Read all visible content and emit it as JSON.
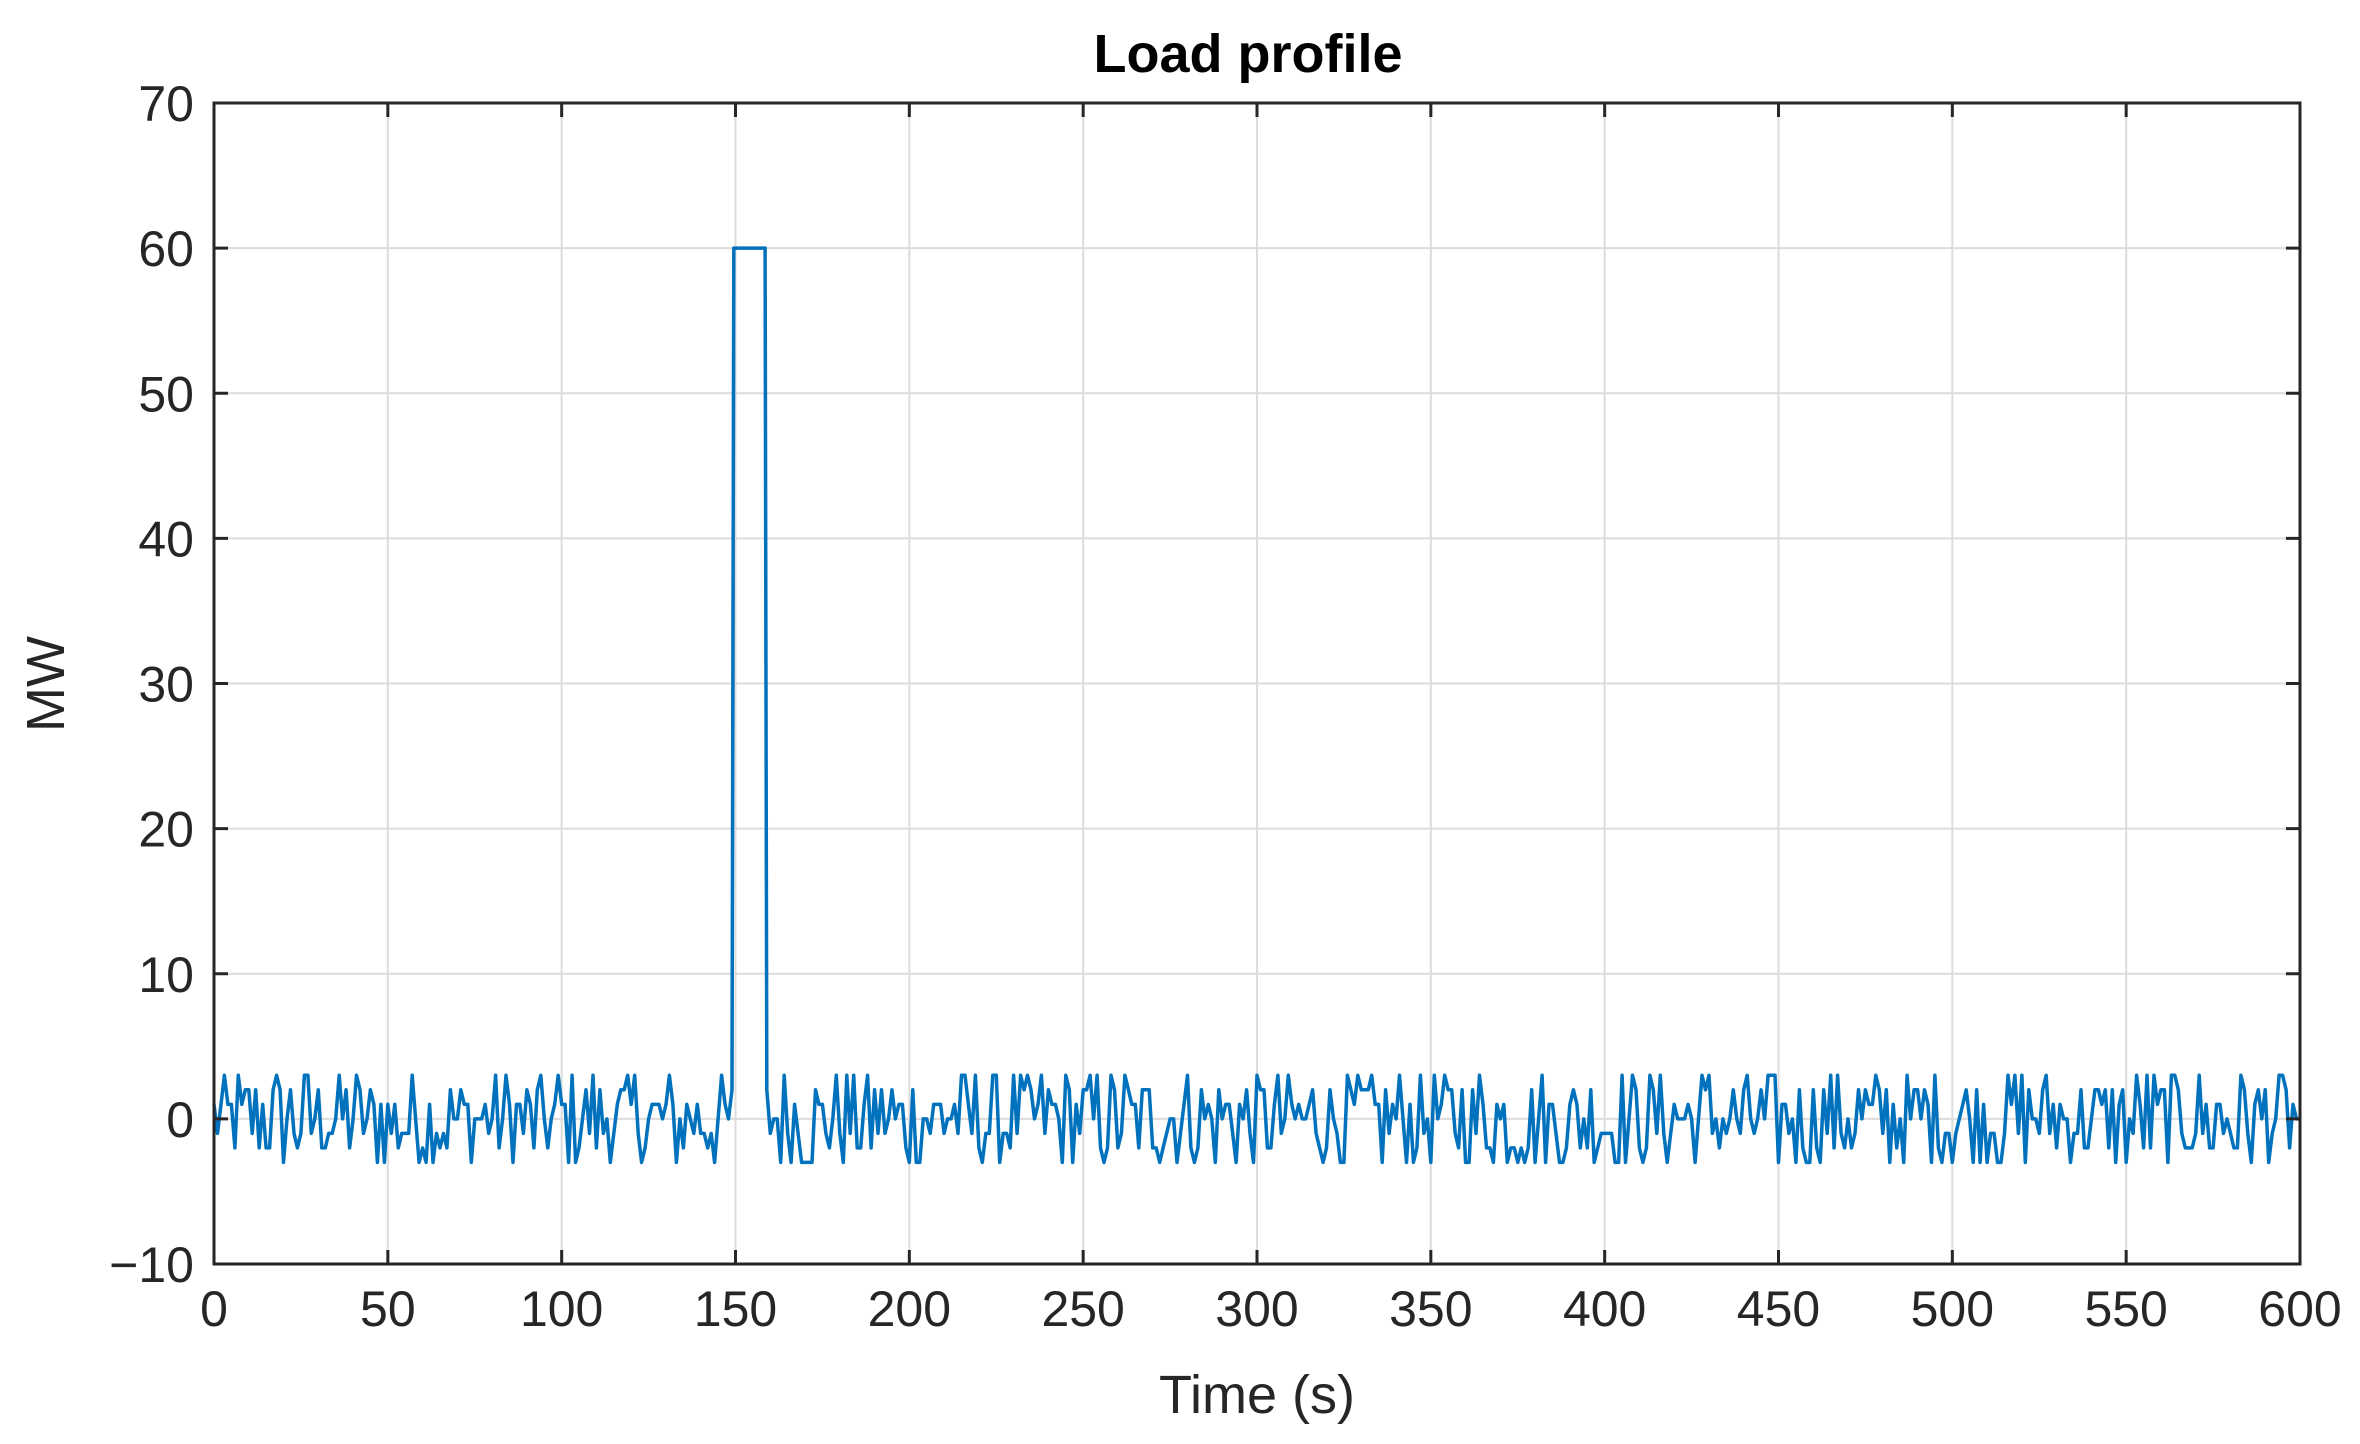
{
  "chart_data": {
    "type": "line",
    "title": "Load profile",
    "xlabel": "Time (s)",
    "ylabel": "MW",
    "xlim": [
      0,
      600
    ],
    "ylim": [
      -10,
      70
    ],
    "x_ticks": [
      0,
      50,
      100,
      150,
      200,
      250,
      300,
      350,
      400,
      450,
      500,
      550,
      600
    ],
    "y_ticks": [
      -10,
      0,
      10,
      20,
      30,
      40,
      50,
      60,
      70
    ],
    "x_tick_labels": [
      "0",
      "50",
      "100",
      "150",
      "200",
      "250",
      "300",
      "350",
      "400",
      "450",
      "500",
      "550",
      "600"
    ],
    "y_tick_labels": [
      "−10",
      "0",
      "10",
      "20",
      "30",
      "40",
      "50",
      "60",
      "70"
    ],
    "grid": true,
    "legend": "none",
    "series": [
      {
        "color": "#0072BD",
        "pulse": {
          "start": 149.5,
          "end": 158.5,
          "value": 60
        },
        "noise_levels": [
          -3,
          -2,
          -1,
          0,
          1,
          2,
          3
        ],
        "x": [
          0,
          600
        ],
        "y_range": [
          -3,
          3
        ]
      }
    ]
  }
}
